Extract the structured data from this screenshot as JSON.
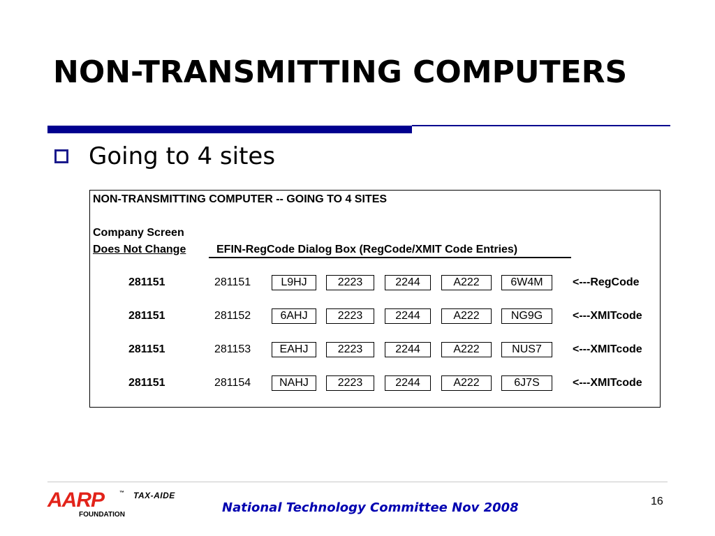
{
  "slide": {
    "title": "NON-TRANSMITTING COMPUTERS",
    "bullet": "Going to 4 sites",
    "accent_color": "#00008f",
    "bullet_color": "#1a1a8c"
  },
  "table": {
    "heading": "NON-TRANSMITTING COMPUTER -- GOING TO 4 SITES",
    "company_screen_line1": "Company Screen",
    "company_screen_line2": "Does Not Change",
    "dialog_label": "EFIN-RegCode Dialog Box (RegCode/XMIT Code Entries)",
    "rows": [
      {
        "company": "281151",
        "efin": "281151",
        "codes": [
          "L9HJ",
          "2223",
          "2244",
          "A222",
          "6W4M"
        ],
        "note": "<---RegCode"
      },
      {
        "company": "281151",
        "efin": "281152",
        "codes": [
          "6AHJ",
          "2223",
          "2244",
          "A222",
          "NG9G"
        ],
        "note": "<---XMITcode"
      },
      {
        "company": "281151",
        "efin": "281153",
        "codes": [
          "EAHJ",
          "2223",
          "2244",
          "A222",
          "NUS7"
        ],
        "note": "<---XMITcode"
      },
      {
        "company": "281151",
        "efin": "281154",
        "codes": [
          "NAHJ",
          "2223",
          "2244",
          "A222",
          "6J7S"
        ],
        "note": "<---XMITcode"
      }
    ]
  },
  "footer": {
    "logo_main": "AARP",
    "logo_tm": "™",
    "logo_sub": "TAX-AIDE",
    "logo_foundation": "FOUNDATION",
    "logo_color": "#e2231a",
    "text": "National Technology Committee Nov 2008",
    "text_color": "#0000b0",
    "page_number": "16"
  }
}
